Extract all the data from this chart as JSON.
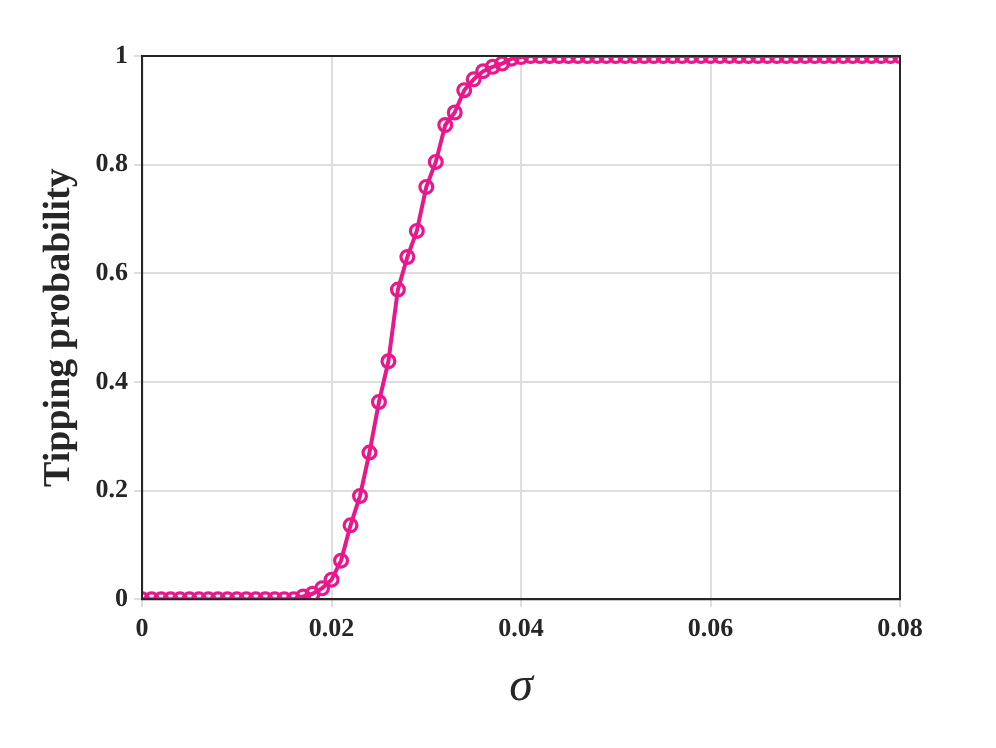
{
  "chart_data": {
    "type": "line",
    "xlabel": "σ",
    "ylabel": "Tipping probability",
    "x": [
      0,
      0.001,
      0.002,
      0.003,
      0.004,
      0.005,
      0.006,
      0.007,
      0.008,
      0.009,
      0.01,
      0.011,
      0.012,
      0.013,
      0.014,
      0.015,
      0.016,
      0.017,
      0.018,
      0.019,
      0.02,
      0.021,
      0.022,
      0.023,
      0.024,
      0.025,
      0.026,
      0.027,
      0.028,
      0.029,
      0.03,
      0.031,
      0.032,
      0.033,
      0.034,
      0.035,
      0.036,
      0.037,
      0.038,
      0.039,
      0.04,
      0.041,
      0.042,
      0.043,
      0.044,
      0.045,
      0.046,
      0.047,
      0.048,
      0.049,
      0.05,
      0.051,
      0.052,
      0.053,
      0.054,
      0.055,
      0.056,
      0.057,
      0.058,
      0.059,
      0.06,
      0.061,
      0.062,
      0.063,
      0.064,
      0.065,
      0.066,
      0.067,
      0.068,
      0.069,
      0.07,
      0.071,
      0.072,
      0.073,
      0.074,
      0.075,
      0.076,
      0.077,
      0.078,
      0.079,
      0.08
    ],
    "series": [
      {
        "color": "#e8188c",
        "values": [
          0,
          0,
          0,
          0,
          0,
          0,
          0,
          0,
          0,
          0,
          0,
          0,
          0,
          0,
          0,
          0,
          0,
          0.005,
          0.01,
          0.02,
          0.036,
          0.071,
          0.136,
          0.19,
          0.27,
          0.363,
          0.438,
          0.57,
          0.63,
          0.678,
          0.759,
          0.805,
          0.873,
          0.896,
          0.937,
          0.957,
          0.972,
          0.98,
          0.986,
          0.995,
          0.998,
          1,
          1,
          1,
          1,
          1,
          1,
          1,
          1,
          1,
          1,
          1,
          1,
          1,
          1,
          1,
          1,
          1,
          1,
          1,
          1,
          1,
          1,
          1,
          1,
          1,
          1,
          1,
          1,
          1,
          1,
          1,
          1,
          1,
          1,
          1,
          1,
          1,
          1,
          1,
          1
        ]
      }
    ],
    "xlim": [
      0,
      0.08
    ],
    "xticks": [
      0,
      0.02,
      0.04,
      0.06,
      0.08
    ],
    "ylim": [
      0,
      1
    ],
    "yticks": [
      0,
      0.2,
      0.4,
      0.6,
      0.8,
      1
    ],
    "grid": true,
    "legend": false,
    "marker": "circle",
    "line_style": "solid"
  }
}
